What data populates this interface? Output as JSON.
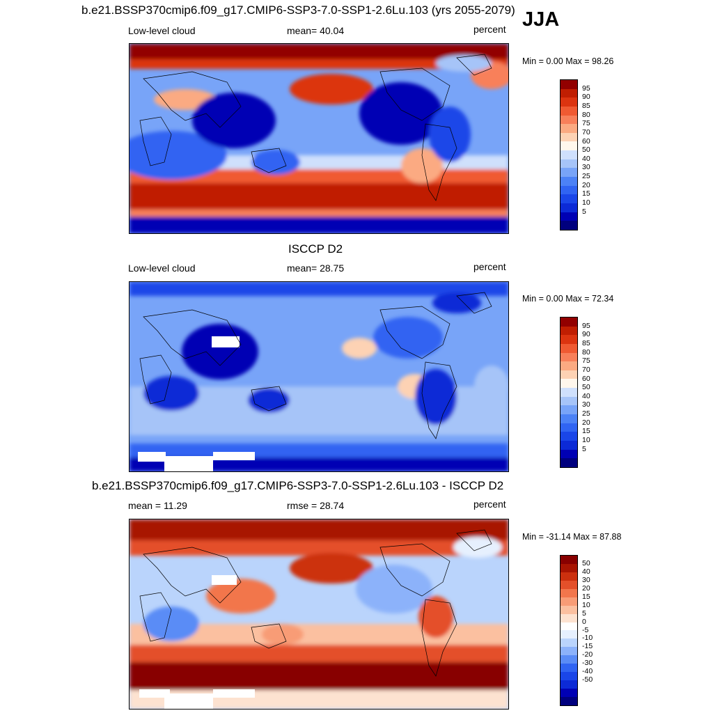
{
  "season": "JJA",
  "palettes": {
    "abs": [
      "#00007e",
      "#0000b4",
      "#0c2ad6",
      "#1a46e8",
      "#3064f2",
      "#4c82f6",
      "#78a4f8",
      "#a6c4f8",
      "#cfe0fc",
      "#fff7ec",
      "#fdd2b4",
      "#fbaa82",
      "#f8805a",
      "#f05a32",
      "#dc3410",
      "#c01e02",
      "#920000"
    ],
    "diff": [
      "#00007e",
      "#0000b4",
      "#0c2ad6",
      "#1a46e8",
      "#3064f2",
      "#5a8cf6",
      "#8cb2fa",
      "#bad4fc",
      "#e6f0fe",
      "#ffffff",
      "#fde2d0",
      "#fbc0a0",
      "#f89c76",
      "#f2764c",
      "#e4502a",
      "#cc300e",
      "#a81402",
      "#880000"
    ]
  },
  "panels": [
    {
      "title": "b.e21.BSSP370cmip6.f09_g17.CMIP6-SSP3-7.0-SSP1-2.6Lu.103 (yrs 2055-2079)",
      "left": "Low-level cloud",
      "center": "mean=  40.04",
      "right": "percent",
      "minmax": "Min =   0.00 Max =  98.26",
      "ticks": [
        "95",
        "90",
        "85",
        "80",
        "75",
        "70",
        "60",
        "50",
        "40",
        "30",
        "25",
        "20",
        "15",
        "10",
        "5"
      ]
    },
    {
      "title": "ISCCP D2",
      "left": "Low-level cloud",
      "center": "mean=  28.75",
      "right": "percent",
      "minmax": "Min =   0.00 Max =  72.34",
      "ticks": [
        "95",
        "90",
        "85",
        "80",
        "75",
        "70",
        "60",
        "50",
        "40",
        "30",
        "25",
        "20",
        "15",
        "10",
        "5"
      ]
    },
    {
      "title": "b.e21.BSSP370cmip6.f09_g17.CMIP6-SSP3-7.0-SSP1-2.6Lu.103 - ISCCP D2",
      "left": "mean =  11.29",
      "center": "rmse =  28.74",
      "right": "percent",
      "minmax": "Min = -31.14 Max =  87.88",
      "ticks": [
        "50",
        "40",
        "30",
        "20",
        "15",
        "10",
        "5",
        "0",
        "-5",
        "-10",
        "-15",
        "-20",
        "-30",
        "-40",
        "-50"
      ]
    }
  ]
}
